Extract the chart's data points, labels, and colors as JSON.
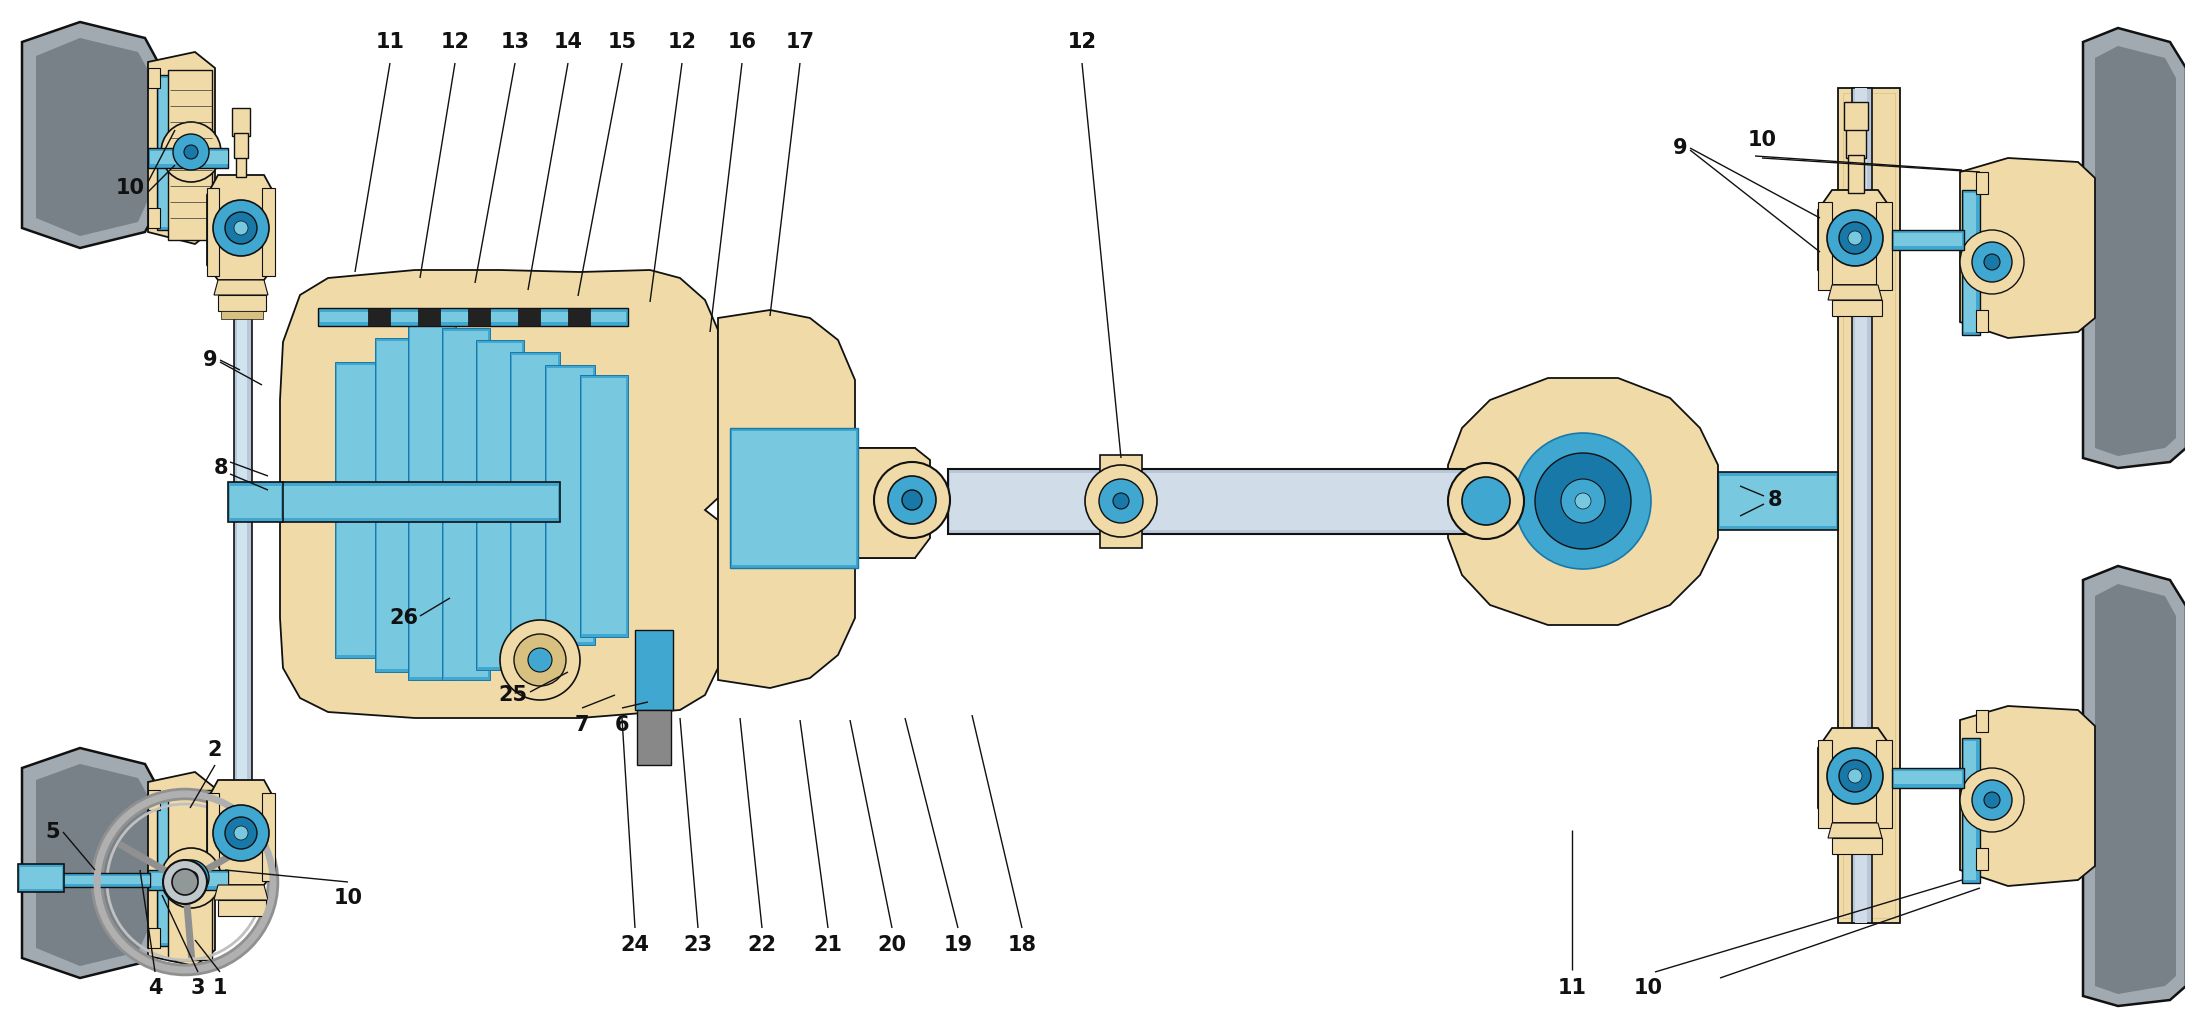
{
  "bg": "#ffffff",
  "beige": "#f0dba8",
  "beige_dark": "#d8c080",
  "blue_light": "#78c8e0",
  "blue": "#40a8d0",
  "blue_dark": "#1878a8",
  "gray_tire": "#a0aab0",
  "gray_tire_dark": "#788088",
  "gray_shaft": "#b8c8d8",
  "gray_shaft_dark": "#8898a8",
  "outline": "#111111",
  "black": "#000000",
  "figsize": [
    21.85,
    10.11
  ],
  "dpi": 100,
  "label_fs": 15
}
